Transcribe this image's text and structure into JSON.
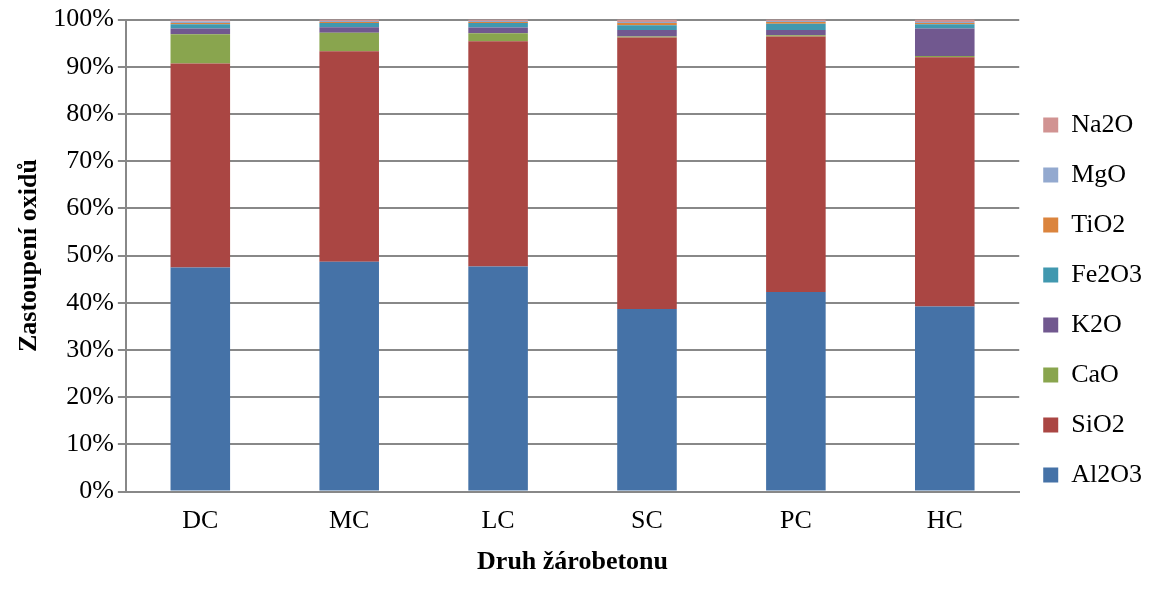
{
  "chart_data": {
    "type": "bar",
    "stacked": true,
    "xlabel": "Druh žárobetonu",
    "ylabel": "Zastoupení oxidů",
    "categories": [
      "DC",
      "MC",
      "LC",
      "SC",
      "PC",
      "HC"
    ],
    "series": [
      {
        "name": "Al2O3",
        "color": "#4572a7",
        "values": [
          47.5,
          48.7,
          47.7,
          38.7,
          42.3,
          39.2
        ]
      },
      {
        "name": "SiO2",
        "color": "#aa4643",
        "values": [
          43.2,
          44.6,
          47.7,
          57.5,
          54.1,
          52.8
        ]
      },
      {
        "name": "CaO",
        "color": "#89a54e",
        "values": [
          6.2,
          3.9,
          1.7,
          0.2,
          0.3,
          0.3
        ]
      },
      {
        "name": "K2O",
        "color": "#71588f",
        "values": [
          1.2,
          1.2,
          1.2,
          1.4,
          1.1,
          5.8
        ]
      },
      {
        "name": "Fe2O3",
        "color": "#4198af",
        "values": [
          0.9,
          0.9,
          1.0,
          1.0,
          1.3,
          0.9
        ]
      },
      {
        "name": "TiO2",
        "color": "#db843d",
        "values": [
          0.3,
          0.2,
          0.2,
          0.5,
          0.4,
          0.3
        ]
      },
      {
        "name": "MgO",
        "color": "#93a9cf",
        "values": [
          0.3,
          0.2,
          0.2,
          0.2,
          0.2,
          0.2
        ]
      },
      {
        "name": "Na2O",
        "color": "#d19392",
        "values": [
          0.4,
          0.3,
          0.3,
          0.5,
          0.3,
          0.5
        ]
      }
    ],
    "ylim": [
      0,
      100
    ],
    "yticks": [
      {
        "value": 0,
        "label": "0%"
      },
      {
        "value": 10,
        "label": "10%"
      },
      {
        "value": 20,
        "label": "20%"
      },
      {
        "value": 30,
        "label": "30%"
      },
      {
        "value": 40,
        "label": "40%"
      },
      {
        "value": 50,
        "label": "50%"
      },
      {
        "value": 60,
        "label": "60%"
      },
      {
        "value": 70,
        "label": "70%"
      },
      {
        "value": 80,
        "label": "80%"
      },
      {
        "value": 90,
        "label": "90%"
      },
      {
        "value": 100,
        "label": "100%"
      }
    ],
    "grid": "y",
    "legend": "right"
  }
}
